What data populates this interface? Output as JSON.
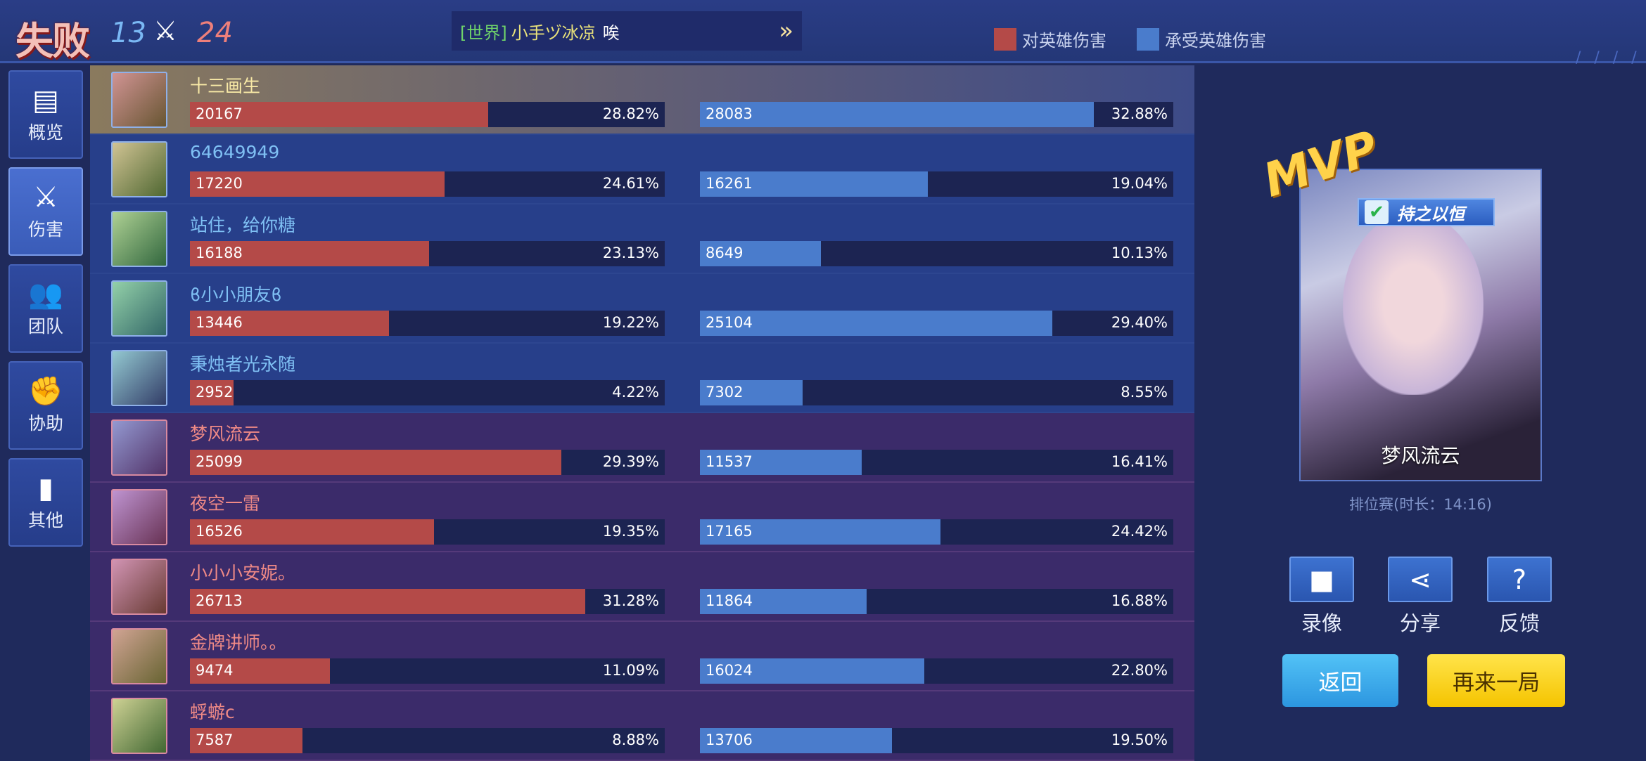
{
  "header": {
    "result": "失败",
    "score_ally": "13",
    "vs_icon": "crossed-swords",
    "score_enemy": "24",
    "chat": {
      "channel": "[世界]",
      "sender": "小手ヅ冰凉",
      "message": "唉",
      "expand": "»"
    },
    "legend": [
      {
        "label": "对英雄伤害",
        "color": "#b44a48"
      },
      {
        "label": "承受英雄伤害",
        "color": "#4a7ccc"
      }
    ]
  },
  "sidebar": [
    {
      "label": "概览",
      "icon": "overview-doc-icon",
      "glyph": "▤"
    },
    {
      "label": "伤害",
      "icon": "sword-icon",
      "glyph": "⚔",
      "active": true
    },
    {
      "label": "团队",
      "icon": "team-icon",
      "glyph": "👥"
    },
    {
      "label": "协助",
      "icon": "fist-icon",
      "glyph": "✊"
    },
    {
      "label": "其他",
      "icon": "bar-chart-icon",
      "glyph": "▮"
    }
  ],
  "colors": {
    "dealt": "#b44a48",
    "taken": "#4a7ccc"
  },
  "players": [
    {
      "team": "ally",
      "me": true,
      "name": "十三画生",
      "dealt": 20167,
      "dealt_pct": "28.82%",
      "taken": 28083,
      "taken_pct": "32.88%"
    },
    {
      "team": "ally",
      "name": "64649949",
      "dealt": 17220,
      "dealt_pct": "24.61%",
      "taken": 16261,
      "taken_pct": "19.04%"
    },
    {
      "team": "ally",
      "name": "站住，给你糖",
      "dealt": 16188,
      "dealt_pct": "23.13%",
      "taken": 8649,
      "taken_pct": "10.13%"
    },
    {
      "team": "ally",
      "name": "ϐ小小朋友ϐ",
      "dealt": 13446,
      "dealt_pct": "19.22%",
      "taken": 25104,
      "taken_pct": "29.40%"
    },
    {
      "team": "ally",
      "name": "秉烛者光永随",
      "dealt": 2952,
      "dealt_pct": "4.22%",
      "taken": 7302,
      "taken_pct": "8.55%"
    },
    {
      "team": "enemy",
      "name": "梦风流云",
      "dealt": 25099,
      "dealt_pct": "29.39%",
      "taken": 11537,
      "taken_pct": "16.41%"
    },
    {
      "team": "enemy",
      "name": "夜空一雷",
      "dealt": 16526,
      "dealt_pct": "19.35%",
      "taken": 17165,
      "taken_pct": "24.42%"
    },
    {
      "team": "enemy",
      "name": "小小小安妮。",
      "dealt": 26713,
      "dealt_pct": "31.28%",
      "taken": 11864,
      "taken_pct": "16.88%"
    },
    {
      "team": "enemy",
      "name": "金牌讲师。。",
      "dealt": 9474,
      "dealt_pct": "11.09%",
      "taken": 16024,
      "taken_pct": "22.80%"
    },
    {
      "team": "enemy",
      "name": "蜉蝣c",
      "dealt": 7587,
      "dealt_pct": "8.88%",
      "taken": 13706,
      "taken_pct": "19.50%"
    }
  ],
  "mvp": {
    "badge": "MVP",
    "title": "持之以恒",
    "hero_name": "梦风流云",
    "mode": "排位赛(时长：14:16)"
  },
  "actions": [
    {
      "label": "录像",
      "icon": "video-camera-icon",
      "glyph": "■"
    },
    {
      "label": "分享",
      "icon": "share-icon",
      "glyph": "⋖"
    },
    {
      "label": "反馈",
      "icon": "feedback-doc-icon",
      "glyph": "?"
    }
  ],
  "buttons": {
    "back": "返回",
    "again": "再来一局"
  }
}
